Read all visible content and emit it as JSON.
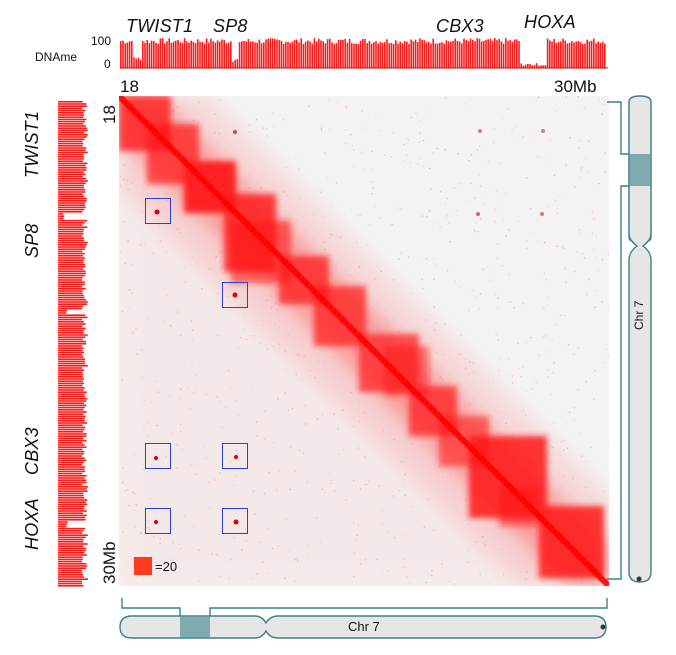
{
  "dname_label": "DNAme",
  "dname_ticks": [
    "100",
    "0"
  ],
  "genes_top": [
    "TWIST1",
    "SP8",
    "CBX3",
    "HOXA"
  ],
  "genes_left": [
    "TWIST1",
    "SP8",
    "CBX3",
    "HOXA"
  ],
  "coord_start_top": "18",
  "coord_end_top": "30Mb",
  "coord_start_left": "18",
  "coord_end_left": "30Mb",
  "scale_label": "=20",
  "chromosome_label": "Chr 7",
  "colors": {
    "signal": "#ff1a1a",
    "box": "#2d3fd6",
    "chrom_fill": "#e6e6e6",
    "chrom_highlight": "#7faab0",
    "teal_line": "#3e7f8a"
  }
}
